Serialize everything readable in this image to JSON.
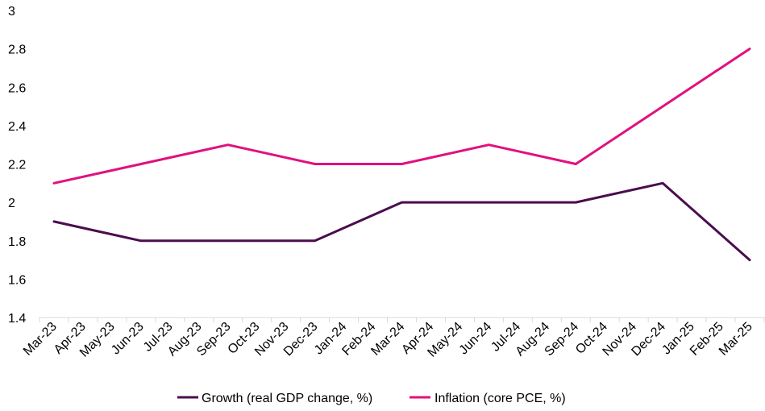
{
  "chart_data": {
    "type": "line",
    "title": "",
    "xlabel": "",
    "ylabel": "",
    "ylim": [
      1.4,
      3
    ],
    "yticks": [
      "1.4",
      "1.6",
      "1.8",
      "2",
      "2.2",
      "2.4",
      "2.6",
      "2.8",
      "3"
    ],
    "grid": false,
    "legend_position": "bottom",
    "categories": [
      "Mar-23",
      "Apr-23",
      "May-23",
      "Jun-23",
      "Jul-23",
      "Aug-23",
      "Sep-23",
      "Oct-23",
      "Nov-23",
      "Dec-23",
      "Jan-24",
      "Feb-24",
      "Mar-24",
      "Apr-24",
      "May-24",
      "Jun-24",
      "Jul-24",
      "Aug-24",
      "Sep-24",
      "Oct-24",
      "Nov-24",
      "Dec-24",
      "Jan-25",
      "Feb-25",
      "Mar-25"
    ],
    "series": [
      {
        "name": "Growth (real GDP change, %)",
        "color": "#4a0d4e",
        "points": [
          [
            0,
            1.9
          ],
          [
            3,
            1.8
          ],
          [
            6,
            1.8
          ],
          [
            9,
            1.8
          ],
          [
            12,
            2.0
          ],
          [
            15,
            2.0
          ],
          [
            18,
            2.0
          ],
          [
            21,
            2.1
          ],
          [
            24,
            1.7
          ]
        ]
      },
      {
        "name": "Inflation (core PCE, %)",
        "color": "#e0117f",
        "points": [
          [
            0,
            2.1
          ],
          [
            3,
            2.2
          ],
          [
            6,
            2.3
          ],
          [
            9,
            2.2
          ],
          [
            12,
            2.2
          ],
          [
            15,
            2.3
          ],
          [
            18,
            2.2
          ],
          [
            21,
            2.5
          ],
          [
            24,
            2.8
          ]
        ]
      }
    ]
  }
}
